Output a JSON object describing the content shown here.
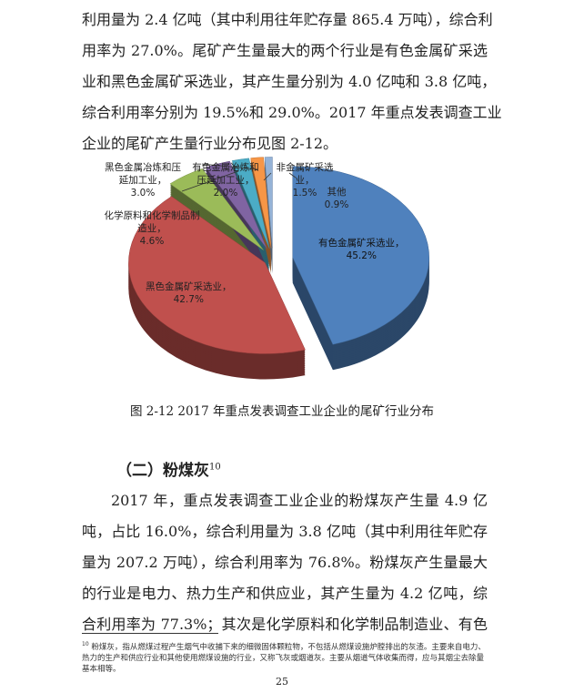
{
  "para1": [
    "利用量为 2.4 亿吨（其中利用往年贮存量 865.4 万吨），综合利",
    "用率为 27.0%。尾矿产生量最大的两个行业是有色金属矿采选",
    "业和黑色金属矿采选业，其产生量分别为 4.0 亿吨和 3.8 亿吨，",
    "综合利用率分别为 19.5%和 29.0%。2017 年重点发表调查工业",
    "企业的尾矿产生量行业分布见图 2-12。"
  ],
  "chart_data": {
    "type": "pie",
    "style": "3d-exploded",
    "title": "",
    "slices": [
      {
        "label": "有色金属矿采选业，",
        "value": 45.2,
        "display": "45.2%",
        "color": "#4f81bd"
      },
      {
        "label": "黑色金属矿采选业，",
        "value": 42.7,
        "display": "42.7%",
        "color": "#c0504d"
      },
      {
        "label": "化学原料和化学制品制造业，",
        "value": 4.6,
        "display": "4.6%",
        "color": "#9bbb59"
      },
      {
        "label": "黑色金属冶炼和压延加工业，",
        "value": 3.0,
        "display": "3.0%",
        "color": "#8064a2"
      },
      {
        "label": "有色金属冶炼和压延加工业，",
        "value": 2.0,
        "display": "2.0%",
        "color": "#4bacc6"
      },
      {
        "label": "非金属矿采选业，",
        "value": 1.5,
        "display": "1.5%",
        "color": "#f79646"
      },
      {
        "label": "其他",
        "value": 0.9,
        "display": "0.9%",
        "color": "#95b3d7"
      }
    ]
  },
  "caption": "图 2-12 2017 年重点发表调查工业企业的尾矿行业分布",
  "heading": {
    "text": "（二）粉煤灰",
    "sup": "10"
  },
  "para2": [
    "2017 年，重点发表调查工业企业的粉煤灰产生量 4.9 亿",
    "吨，占比 16.0%，综合利用量为 3.8 亿吨（其中利用往年贮存",
    "量为 207.2 万吨），综合利用率为 76.8%。粉煤灰产生量最大",
    "的行业是电力、热力生产和供应业，其产生量为 4.2 亿吨，综",
    "合利用率为 77.3%；其次是化学原料和化学制品制造业、有色"
  ],
  "footnote": {
    "num": "10",
    "text": "粉煤灰，指从燃煤过程产生烟气中收捕下来的细微固体颗粒物，不包括从燃煤设施炉膛排出的灰渣。主要来自电力、热力的生产和供应行业和其他使用燃煤设施的行业，又称飞灰或烟道灰。主要从烟道气体收集而得，应与其烟尘去除量基本相等。"
  },
  "page_number": "25"
}
